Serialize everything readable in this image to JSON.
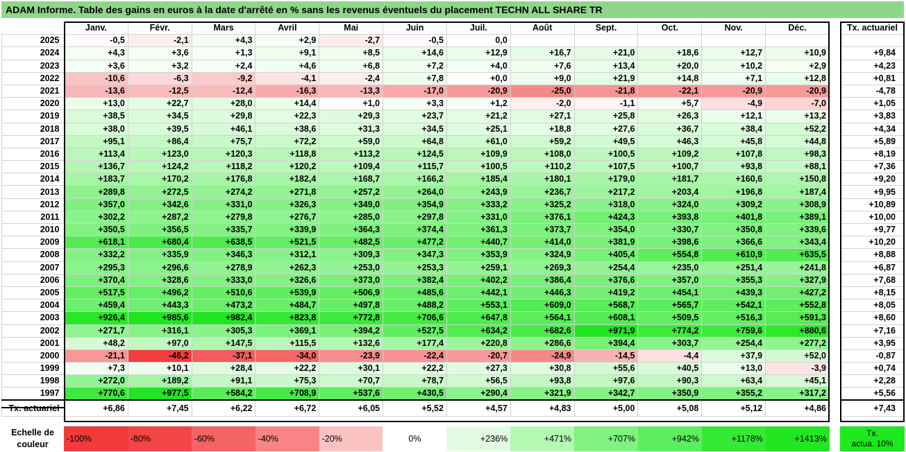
{
  "title": "ADAM Informe. Table des gains en euros à la date d'arrêté en % sans les revenus éventuels du placement TECHN ALL SHARE TR",
  "months": [
    "Janv.",
    "Févr.",
    "Mars",
    "Avril",
    "Mai",
    "Juin",
    "Juil.",
    "Août",
    "Sept.",
    "Oct.",
    "Nov.",
    "Déc."
  ],
  "tx_header": "Tx. actuariel",
  "rows": [
    {
      "year": "2025",
      "values": [
        "-0,5",
        "-2,1",
        "+4,3",
        "+2,9",
        "-2,7",
        "-0,5",
        "0,0",
        "",
        "",
        "",
        "",
        ""
      ],
      "tx": ""
    },
    {
      "year": "2024",
      "values": [
        "+4,3",
        "+3,6",
        "+1,3",
        "+9,1",
        "+8,5",
        "+14,6",
        "+12,9",
        "+16,7",
        "+21,0",
        "+18,6",
        "+12,7",
        "+10,9"
      ],
      "tx": "+9,84"
    },
    {
      "year": "2023",
      "values": [
        "+3,6",
        "+3,2",
        "+2,4",
        "+4,6",
        "+6,8",
        "+7,2",
        "+4,0",
        "+7,6",
        "+13,4",
        "+20,0",
        "+10,2",
        "+2,9"
      ],
      "tx": "+4,23"
    },
    {
      "year": "2022",
      "values": [
        "-10,6",
        "-6,3",
        "-9,2",
        "-4,1",
        "-2,4",
        "+7,8",
        "+0,0",
        "+9,0",
        "+21,9",
        "+14,8",
        "+7,1",
        "+12,8"
      ],
      "tx": "+0,81"
    },
    {
      "year": "2021",
      "values": [
        "-13,6",
        "-12,5",
        "-12,4",
        "-16,3",
        "-13,3",
        "-17,0",
        "-20,9",
        "-25,0",
        "-21,8",
        "-22,1",
        "-20,9",
        "-20,9"
      ],
      "tx": "-4,78"
    },
    {
      "year": "2020",
      "values": [
        "+13,0",
        "+22,7",
        "+28,0",
        "+14,4",
        "+1,0",
        "+3,3",
        "+1,2",
        "-2,0",
        "-1,1",
        "+5,7",
        "-4,9",
        "-7,0"
      ],
      "tx": "+1,05"
    },
    {
      "year": "2019",
      "values": [
        "+38,5",
        "+34,5",
        "+29,8",
        "+22,3",
        "+29,3",
        "+23,7",
        "+21,2",
        "+27,1",
        "+25,8",
        "+26,3",
        "+12,1",
        "+13,2"
      ],
      "tx": "+3,83"
    },
    {
      "year": "2018",
      "values": [
        "+38,0",
        "+39,5",
        "+46,1",
        "+38,6",
        "+31,3",
        "+34,5",
        "+25,1",
        "+18,8",
        "+27,6",
        "+36,7",
        "+38,4",
        "+52,2"
      ],
      "tx": "+4,34"
    },
    {
      "year": "2017",
      "values": [
        "+95,1",
        "+86,4",
        "+75,7",
        "+72,2",
        "+59,0",
        "+64,8",
        "+61,0",
        "+59,2",
        "+49,5",
        "+46,3",
        "+45,8",
        "+44,8"
      ],
      "tx": "+5,89"
    },
    {
      "year": "2016",
      "values": [
        "+113,4",
        "+123,0",
        "+120,3",
        "+118,8",
        "+113,2",
        "+124,5",
        "+109,9",
        "+108,0",
        "+100,5",
        "+109,2",
        "+107,8",
        "+98,3"
      ],
      "tx": "+8,19"
    },
    {
      "year": "2015",
      "values": [
        "+136,7",
        "+124,2",
        "+118,2",
        "+120,2",
        "+109,4",
        "+115,7",
        "+100,5",
        "+110,2",
        "+107,5",
        "+100,7",
        "+93,8",
        "+88,1"
      ],
      "tx": "+7,36"
    },
    {
      "year": "2014",
      "values": [
        "+183,7",
        "+170,2",
        "+176,8",
        "+182,4",
        "+168,7",
        "+166,2",
        "+185,4",
        "+180,1",
        "+179,0",
        "+181,7",
        "+160,6",
        "+150,8"
      ],
      "tx": "+9,20"
    },
    {
      "year": "2013",
      "values": [
        "+289,8",
        "+272,5",
        "+274,2",
        "+271,8",
        "+257,2",
        "+264,0",
        "+243,9",
        "+236,7",
        "+217,2",
        "+203,4",
        "+196,8",
        "+187,4"
      ],
      "tx": "+9,95"
    },
    {
      "year": "2012",
      "values": [
        "+357,0",
        "+342,6",
        "+331,0",
        "+326,3",
        "+349,0",
        "+354,9",
        "+333,2",
        "+325,2",
        "+318,0",
        "+324,0",
        "+309,2",
        "+308,9"
      ],
      "tx": "+10,89"
    },
    {
      "year": "2011",
      "values": [
        "+302,2",
        "+287,2",
        "+279,8",
        "+276,7",
        "+285,0",
        "+297,8",
        "+331,0",
        "+376,1",
        "+424,3",
        "+393,8",
        "+401,8",
        "+389,1"
      ],
      "tx": "+10,00"
    },
    {
      "year": "2010",
      "values": [
        "+350,5",
        "+356,5",
        "+335,7",
        "+339,9",
        "+364,3",
        "+374,4",
        "+361,3",
        "+373,7",
        "+354,0",
        "+330,7",
        "+350,8",
        "+339,6"
      ],
      "tx": "+9,77"
    },
    {
      "year": "2009",
      "values": [
        "+618,1",
        "+680,4",
        "+638,5",
        "+521,5",
        "+482,5",
        "+477,2",
        "+440,7",
        "+414,0",
        "+381,9",
        "+398,6",
        "+366,6",
        "+343,4"
      ],
      "tx": "+10,20"
    },
    {
      "year": "2008",
      "values": [
        "+332,2",
        "+335,9",
        "+346,3",
        "+312,1",
        "+309,3",
        "+347,3",
        "+353,9",
        "+324,9",
        "+405,4",
        "+554,8",
        "+610,9",
        "+635,5"
      ],
      "tx": "+8,88"
    },
    {
      "year": "2007",
      "values": [
        "+295,3",
        "+296,6",
        "+278,9",
        "+262,3",
        "+253,0",
        "+253,3",
        "+259,1",
        "+269,3",
        "+254,4",
        "+235,0",
        "+251,4",
        "+241,8"
      ],
      "tx": "+6,87"
    },
    {
      "year": "2006",
      "values": [
        "+370,4",
        "+328,6",
        "+333,0",
        "+326,6",
        "+373,0",
        "+382,4",
        "+402,2",
        "+386,4",
        "+376,6",
        "+357,0",
        "+355,3",
        "+327,9"
      ],
      "tx": "+7,68"
    },
    {
      "year": "2005",
      "values": [
        "+517,5",
        "+496,2",
        "+510,6",
        "+539,9",
        "+506,9",
        "+485,6",
        "+442,1",
        "+446,3",
        "+419,2",
        "+454,1",
        "+439,3",
        "+427,2"
      ],
      "tx": "+8,15"
    },
    {
      "year": "2004",
      "values": [
        "+459,4",
        "+443,3",
        "+473,2",
        "+484,7",
        "+497,8",
        "+488,2",
        "+553,1",
        "+609,0",
        "+568,7",
        "+565,7",
        "+542,1",
        "+552,8"
      ],
      "tx": "+8,05"
    },
    {
      "year": "2003",
      "values": [
        "+926,4",
        "+985,6",
        "+982,4",
        "+823,8",
        "+772,8",
        "+706,6",
        "+647,8",
        "+564,1",
        "+608,1",
        "+509,5",
        "+516,3",
        "+591,3"
      ],
      "tx": "+8,60"
    },
    {
      "year": "2002",
      "values": [
        "+271,7",
        "+316,1",
        "+305,3",
        "+369,1",
        "+394,2",
        "+527,5",
        "+634,2",
        "+682,6",
        "+971,9",
        "+774,2",
        "+759,6",
        "+880,6"
      ],
      "tx": "+7,16"
    },
    {
      "year": "2001",
      "values": [
        "+48,2",
        "+97,0",
        "+147,5",
        "+115,5",
        "+132,6",
        "+177,4",
        "+220,8",
        "+286,6",
        "+394,4",
        "+303,7",
        "+254,4",
        "+277,2"
      ],
      "tx": "+3,95"
    },
    {
      "year": "2000",
      "values": [
        "-21,1",
        "-46,2",
        "-37,1",
        "-34,0",
        "-23,9",
        "-22,4",
        "-20,7",
        "-24,9",
        "-14,5",
        "-4,4",
        "+37,9",
        "+52,0"
      ],
      "tx": "-0,87"
    },
    {
      "year": "1999",
      "values": [
        "+7,3",
        "+10,1",
        "+28,4",
        "+22,2",
        "+30,1",
        "+22,2",
        "+27,3",
        "+30,8",
        "+55,6",
        "+40,5",
        "+13,0",
        "-3,9"
      ],
      "tx": "+0,74"
    },
    {
      "year": "1998",
      "values": [
        "+272,0",
        "+189,2",
        "+91,1",
        "+75,3",
        "+70,7",
        "+78,7",
        "+56,5",
        "+93,8",
        "+97,6",
        "+90,3",
        "+63,4",
        "+45,1"
      ],
      "tx": "+2,28"
    },
    {
      "year": "1997",
      "values": [
        "+770,6",
        "+977,5",
        "+584,2",
        "+708,9",
        "+537,6",
        "+430,5",
        "+290,4",
        "+321,9",
        "+342,7",
        "+350,9",
        "+355,2",
        "+317,2"
      ],
      "tx": "+5,56"
    }
  ],
  "tx_row": {
    "label": "Tx. actuariel",
    "values": [
      "+6,86",
      "+7,45",
      "+6,22",
      "+6,72",
      "+6,05",
      "+5,52",
      "+4,57",
      "+4,83",
      "+5,00",
      "+5,08",
      "+5,12",
      "+4,86"
    ],
    "total": "+7,43"
  },
  "legend": {
    "label_line1": "Echelle de",
    "label_line2": "couleur",
    "items": [
      {
        "text": "-100%",
        "color": "#f23a3a",
        "kind": "neg"
      },
      {
        "text": "-80%",
        "color": "#f34545",
        "kind": "neg"
      },
      {
        "text": "-60%",
        "color": "#f56464",
        "kind": "neg"
      },
      {
        "text": "-40%",
        "color": "#f78585",
        "kind": "neg"
      },
      {
        "text": "-20%",
        "color": "#fbc2c2",
        "kind": "neg"
      },
      {
        "text": "0%",
        "color": "#ffffff",
        "kind": "zero"
      },
      {
        "text": "+236%",
        "color": "#e2fbe2",
        "kind": "pos"
      },
      {
        "text": "+471%",
        "color": "#b4f8b4",
        "kind": "pos"
      },
      {
        "text": "+707%",
        "color": "#7ff27f",
        "kind": "pos"
      },
      {
        "text": "+942%",
        "color": "#5cee5c",
        "kind": "pos"
      },
      {
        "text": "+1178%",
        "color": "#35ea35",
        "kind": "pos"
      },
      {
        "text": "+1413%",
        "color": "#22e622",
        "kind": "pos"
      }
    ],
    "tx_line1": "Tx.",
    "tx_line2": "actua. 10%"
  }
}
